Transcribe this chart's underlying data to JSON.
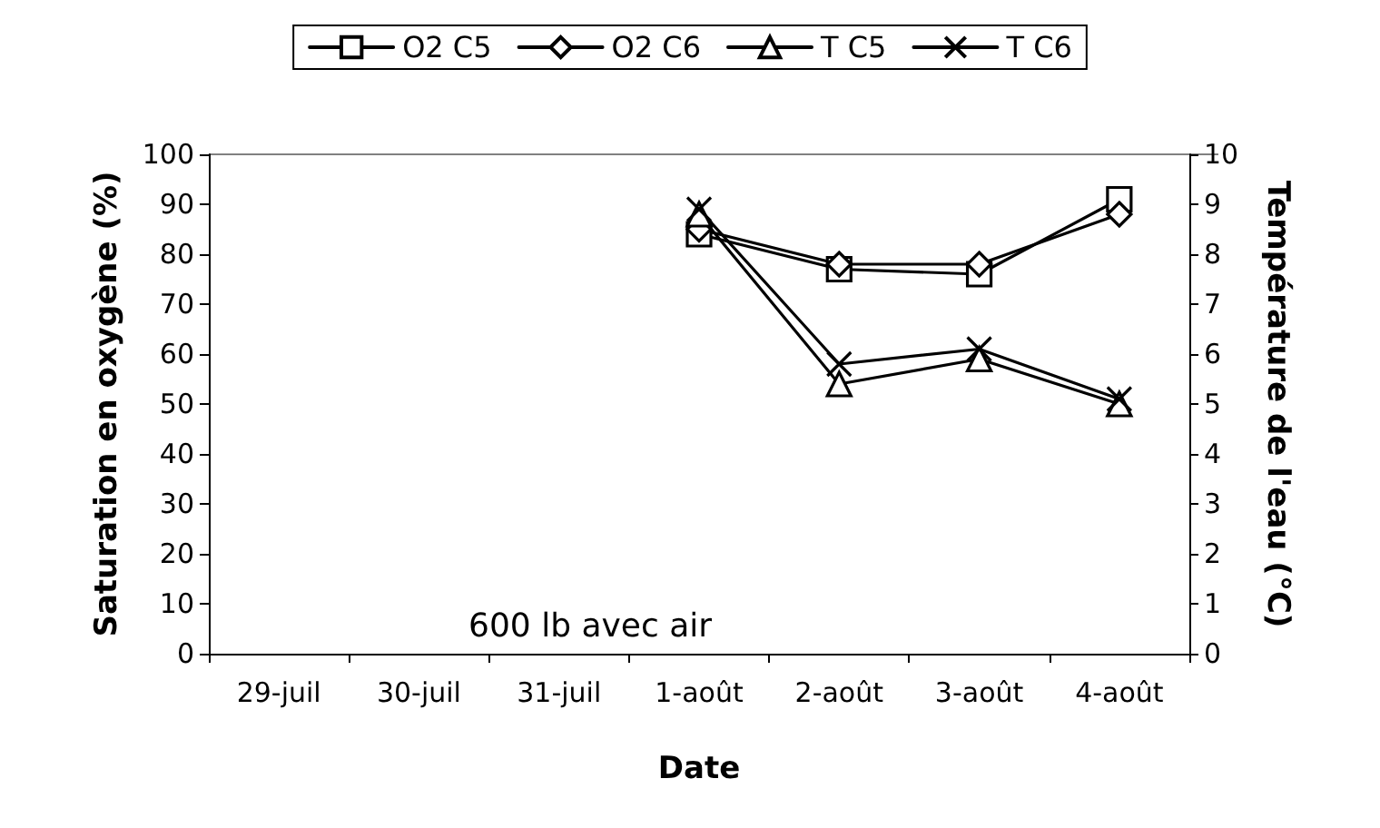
{
  "chart_data": {
    "type": "line",
    "xlabel": "Date",
    "ylabel": "Saturation en oxygène (%)",
    "y2label": "Température de l'eau (°C)",
    "categories": [
      "29-juil",
      "30-juil",
      "31-juil",
      "1-août",
      "2-août",
      "3-août",
      "4-août"
    ],
    "series": [
      {
        "name": "O2 C5",
        "color": "#000000",
        "marker": "square",
        "values": [
          null,
          null,
          null,
          84,
          77,
          76,
          91
        ]
      },
      {
        "name": "O2 C6",
        "color": "#000000",
        "marker": "diamond",
        "values": [
          null,
          null,
          null,
          85,
          78,
          78,
          88
        ]
      },
      {
        "name": "T C5",
        "color": "#000000",
        "marker": "triangle",
        "axis": "y2",
        "values": [
          null,
          null,
          null,
          8.8,
          5.4,
          5.9,
          5.0
        ]
      },
      {
        "name": "T C6",
        "color": "#000000",
        "marker": "cross",
        "axis": "y2",
        "values": [
          null,
          null,
          null,
          8.9,
          5.8,
          6.1,
          5.1
        ]
      }
    ],
    "ylim": [
      0,
      100
    ],
    "yticks": [
      0,
      10,
      20,
      30,
      40,
      50,
      60,
      70,
      80,
      90,
      100
    ],
    "y2lim": [
      0,
      10
    ],
    "y2ticks": [
      0,
      1,
      2,
      3,
      4,
      5,
      6,
      7,
      8,
      9,
      10
    ],
    "annotations": [
      "600 lb avec air"
    ],
    "legend": "top",
    "grid": false,
    "line_style": "solid"
  }
}
